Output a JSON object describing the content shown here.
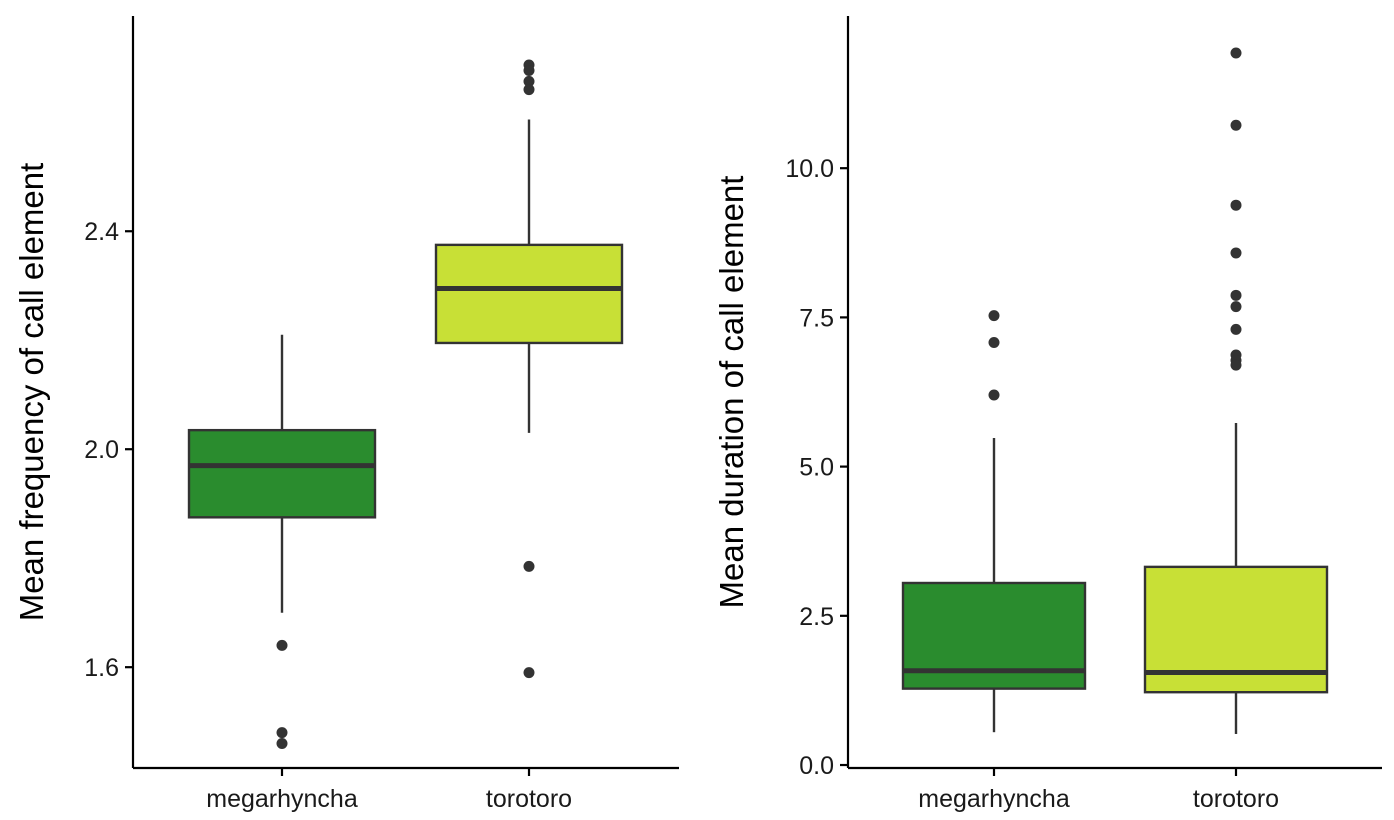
{
  "chart_data": [
    {
      "type": "box",
      "title": "",
      "xlabel": "",
      "ylabel": "Mean frequency of call element",
      "categories": [
        "megarhyncha",
        "torotoro"
      ],
      "colors": [
        "#2a8c2e",
        "#c8e036"
      ],
      "ylim": [
        1.415,
        2.795
      ],
      "yticks": [
        1.6,
        2.0,
        2.4
      ],
      "ytick_labels": [
        "1.6",
        "2.0",
        "2.4"
      ],
      "grid": false,
      "legend": "none",
      "boxes": [
        {
          "category": "megarhyncha",
          "whisker_low": 1.7,
          "q1": 1.875,
          "median": 1.97,
          "q3": 2.035,
          "whisker_high": 2.21,
          "outliers": [
            1.64,
            1.48,
            1.46
          ]
        },
        {
          "category": "torotoro",
          "whisker_low": 2.03,
          "q1": 2.195,
          "median": 2.295,
          "q3": 2.375,
          "whisker_high": 2.605,
          "outliers": [
            2.705,
            2.695,
            2.675,
            2.66,
            1.785,
            1.59
          ]
        }
      ]
    },
    {
      "type": "box",
      "title": "",
      "xlabel": "",
      "ylabel": "Mean duration of call element",
      "categories": [
        "megarhyncha",
        "torotoro"
      ],
      "colors": [
        "#2a8c2e",
        "#c8e036"
      ],
      "ylim": [
        -0.05,
        12.55
      ],
      "yticks": [
        0.0,
        2.5,
        5.0,
        7.5,
        10.0
      ],
      "ytick_labels": [
        "0.0",
        "2.5",
        "5.0",
        "7.5",
        "10.0"
      ],
      "grid": false,
      "legend": "none",
      "boxes": [
        {
          "category": "megarhyncha",
          "whisker_low": 0.55,
          "q1": 1.28,
          "median": 1.58,
          "q3": 3.05,
          "whisker_high": 5.48,
          "outliers": [
            7.53,
            7.08,
            6.2
          ]
        },
        {
          "category": "torotoro",
          "whisker_low": 0.52,
          "q1": 1.22,
          "median": 1.55,
          "q3": 3.32,
          "whisker_high": 5.73,
          "outliers": [
            11.93,
            10.72,
            9.38,
            8.58,
            7.87,
            7.68,
            7.3,
            6.87,
            6.78,
            6.7
          ]
        }
      ]
    }
  ]
}
